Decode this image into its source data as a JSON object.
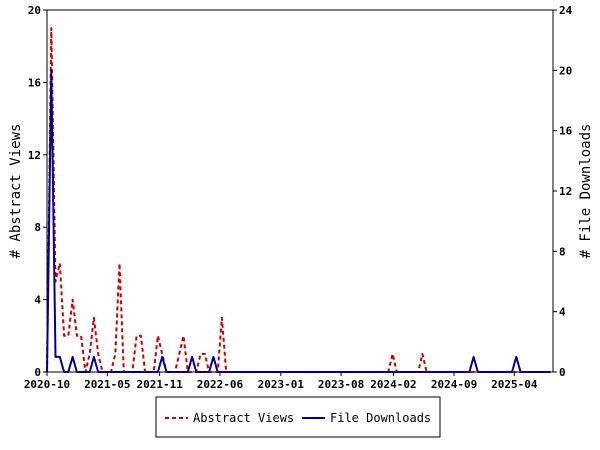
{
  "chart_data": {
    "type": "line",
    "x": [
      "2020-10-01",
      "2020-10-16",
      "2020-10-31",
      "2020-11-15",
      "2020-11-30",
      "2020-12-15",
      "2020-12-30",
      "2021-01-14",
      "2021-01-29",
      "2021-02-13",
      "2021-02-28",
      "2021-03-15",
      "2021-03-30",
      "2021-04-14",
      "2021-04-29",
      "2021-05-14",
      "2021-05-29",
      "2021-06-13",
      "2021-06-28",
      "2021-07-13",
      "2021-07-28",
      "2021-08-12",
      "2021-08-27",
      "2021-09-11",
      "2021-09-26",
      "2021-10-11",
      "2021-10-26",
      "2021-11-10",
      "2021-11-25",
      "2021-12-10",
      "2021-12-25",
      "2022-01-09",
      "2022-01-24",
      "2022-02-08",
      "2022-02-23",
      "2022-03-10",
      "2022-03-25",
      "2022-04-09",
      "2022-04-24",
      "2022-05-09",
      "2022-05-24",
      "2022-06-08",
      "2022-06-23",
      "2022-07-08",
      "2022-07-23",
      "2022-08-07",
      "2022-08-22",
      "2022-09-06",
      "2022-09-21",
      "2022-10-06",
      "2022-10-21",
      "2022-11-05",
      "2022-11-20",
      "2022-12-05",
      "2022-12-20",
      "2023-01-04",
      "2023-01-19",
      "2023-02-03",
      "2023-02-18",
      "2023-03-05",
      "2023-03-20",
      "2023-04-04",
      "2023-04-19",
      "2023-05-04",
      "2023-05-19",
      "2023-06-03",
      "2023-06-18",
      "2023-07-03",
      "2023-07-18",
      "2023-08-02",
      "2023-08-17",
      "2023-09-01",
      "2023-09-16",
      "2023-10-01",
      "2023-10-16",
      "2023-10-31",
      "2023-11-15",
      "2023-11-30",
      "2023-12-15",
      "2023-12-30",
      "2024-01-14",
      "2024-01-29",
      "2024-02-13",
      "2024-02-28",
      "2024-03-14",
      "2024-03-29",
      "2024-04-13",
      "2024-04-28",
      "2024-05-13",
      "2024-05-28",
      "2024-06-12",
      "2024-06-27",
      "2024-07-12",
      "2024-07-27",
      "2024-08-11",
      "2024-08-26",
      "2024-09-10",
      "2024-09-25",
      "2024-10-10",
      "2024-10-25",
      "2024-11-09",
      "2024-11-24",
      "2024-12-09",
      "2024-12-24",
      "2025-01-08",
      "2025-01-23",
      "2025-02-07",
      "2025-02-22",
      "2025-03-09",
      "2025-03-24",
      "2025-04-08",
      "2025-04-23",
      "2025-05-08",
      "2025-05-23",
      "2025-06-07",
      "2025-06-22",
      "2025-07-07",
      "2025-07-22",
      "2025-08-06"
    ],
    "series": [
      {
        "name": "Abstract Views",
        "axis": "left",
        "color": "#cc0000",
        "dash": true,
        "values": [
          0,
          19,
          5,
          6,
          2,
          2,
          4,
          2,
          2,
          0,
          1,
          3,
          1,
          0,
          0,
          0,
          1,
          6,
          0,
          0,
          0,
          2,
          2,
          0,
          0,
          0,
          2,
          1,
          0,
          0,
          0,
          1,
          2,
          0,
          0,
          0,
          1,
          1,
          0,
          0,
          0,
          3,
          0,
          0,
          0,
          0,
          0,
          0,
          0,
          0,
          0,
          0,
          0,
          0,
          0,
          0,
          0,
          0,
          0,
          0,
          0,
          0,
          0,
          0,
          0,
          0,
          0,
          0,
          0,
          0,
          0,
          0,
          0,
          0,
          0,
          0,
          0,
          0,
          0,
          0,
          0,
          1,
          0,
          0,
          0,
          0,
          0,
          0,
          1,
          0,
          0,
          0,
          0,
          0,
          0,
          0,
          0,
          0,
          0,
          0,
          0,
          0,
          0,
          0,
          0,
          0,
          0,
          0,
          0,
          0,
          0,
          0,
          0,
          0,
          0,
          0,
          0,
          0,
          0
        ]
      },
      {
        "name": "File Downloads",
        "axis": "right",
        "color": "#00008b",
        "dash": false,
        "values": [
          0,
          20,
          1,
          1,
          0,
          0,
          1,
          0,
          0,
          0,
          0,
          1,
          0,
          0,
          0,
          0,
          0,
          0,
          0,
          0,
          0,
          0,
          0,
          0,
          0,
          0,
          0,
          1,
          0,
          0,
          0,
          0,
          0,
          0,
          1,
          0,
          0,
          0,
          0,
          1,
          0,
          0,
          0,
          0,
          0,
          0,
          0,
          0,
          0,
          0,
          0,
          0,
          0,
          0,
          0,
          0,
          0,
          0,
          0,
          0,
          0,
          0,
          0,
          0,
          0,
          0,
          0,
          0,
          0,
          0,
          0,
          0,
          0,
          0,
          0,
          0,
          0,
          0,
          0,
          0,
          0,
          0,
          0,
          0,
          0,
          0,
          0,
          0,
          0,
          0,
          0,
          0,
          0,
          0,
          0,
          0,
          0,
          0,
          0,
          0,
          1,
          0,
          0,
          0,
          0,
          0,
          0,
          0,
          0,
          0,
          1,
          0,
          0,
          0,
          0,
          0,
          0,
          0,
          0
        ]
      }
    ],
    "x_tick_labels": [
      "2020-10",
      "2021-05",
      "2021-11",
      "2022-06",
      "2023-01",
      "2023-08",
      "2024-02",
      "2024-09",
      "2025-04"
    ],
    "x_tick_dates": [
      "2020-10-01",
      "2021-05-01",
      "2021-11-01",
      "2022-06-01",
      "2023-01-01",
      "2023-08-01",
      "2024-02-01",
      "2024-09-01",
      "2025-04-01"
    ],
    "x_range": [
      "2020-10-01",
      "2025-08-15"
    ],
    "ylabel_left": "# Abstract Views",
    "ylabel_right": "# File Downloads",
    "ylim_left": [
      0,
      20
    ],
    "ylim_right": [
      0,
      24
    ],
    "yticks_left": [
      "0",
      "4",
      "8",
      "12",
      "16",
      "20"
    ],
    "yticks_right": [
      "0",
      "4",
      "8",
      "12",
      "16",
      "20",
      "24"
    ],
    "legend": {
      "placement": "bottom-center",
      "entries": [
        "Abstract Views",
        "File Downloads"
      ]
    },
    "grid": false
  }
}
